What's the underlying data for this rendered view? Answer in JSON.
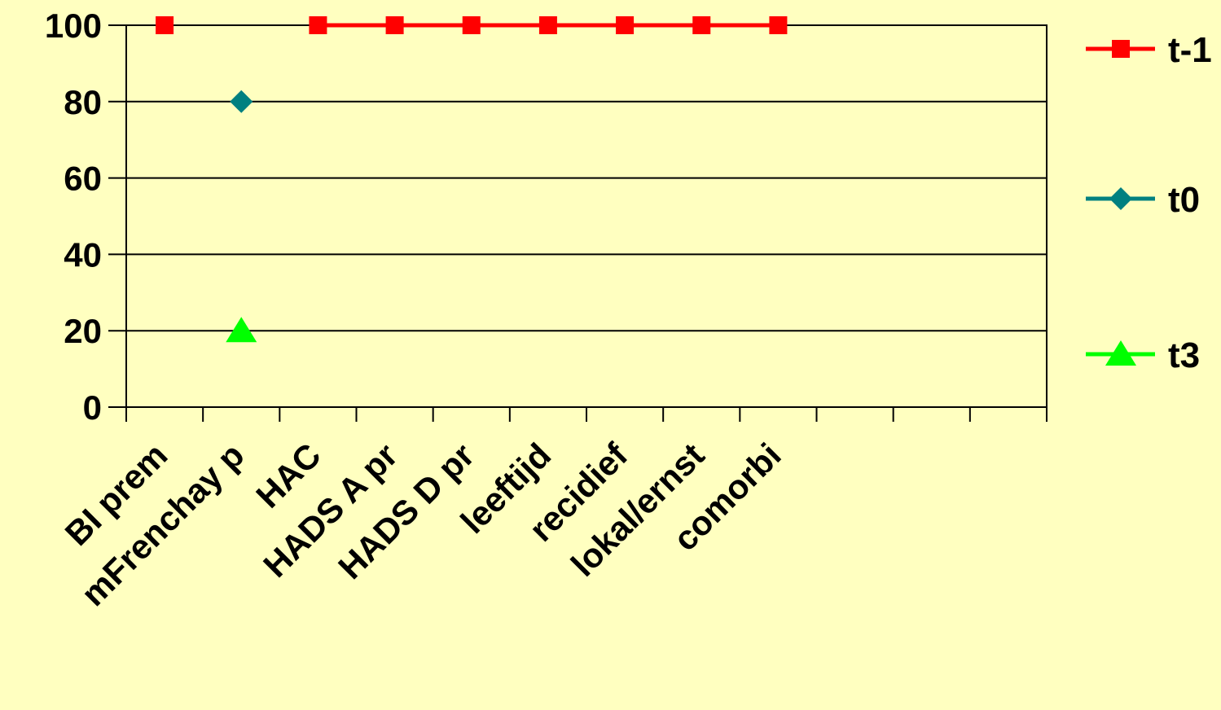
{
  "chart_data": {
    "type": "line",
    "categories": [
      "BI prem",
      "mFrenchay p",
      "HAC",
      "HADS A pr",
      "HADS D pr",
      "leeftijd",
      "recidief",
      "lokal/ernst",
      "comorbi",
      "",
      "",
      ""
    ],
    "y_ticks": [
      "0",
      "20",
      "40",
      "60",
      "80",
      "100"
    ],
    "ylim": [
      0,
      100
    ],
    "grid": true,
    "legend_position": "right",
    "series": [
      {
        "name": "t-1",
        "color": "#ff0000",
        "marker": "square",
        "values": [
          100,
          null,
          100,
          100,
          100,
          100,
          100,
          100,
          100,
          null,
          null,
          null
        ]
      },
      {
        "name": "t0",
        "color": "#008080",
        "marker": "diamond",
        "values": [
          null,
          80,
          null,
          null,
          null,
          null,
          null,
          null,
          null,
          null,
          null,
          null
        ]
      },
      {
        "name": "t3",
        "color": "#00ff00",
        "marker": "triangle",
        "values": [
          null,
          20,
          null,
          null,
          null,
          null,
          null,
          null,
          null,
          null,
          null,
          null
        ]
      }
    ]
  }
}
